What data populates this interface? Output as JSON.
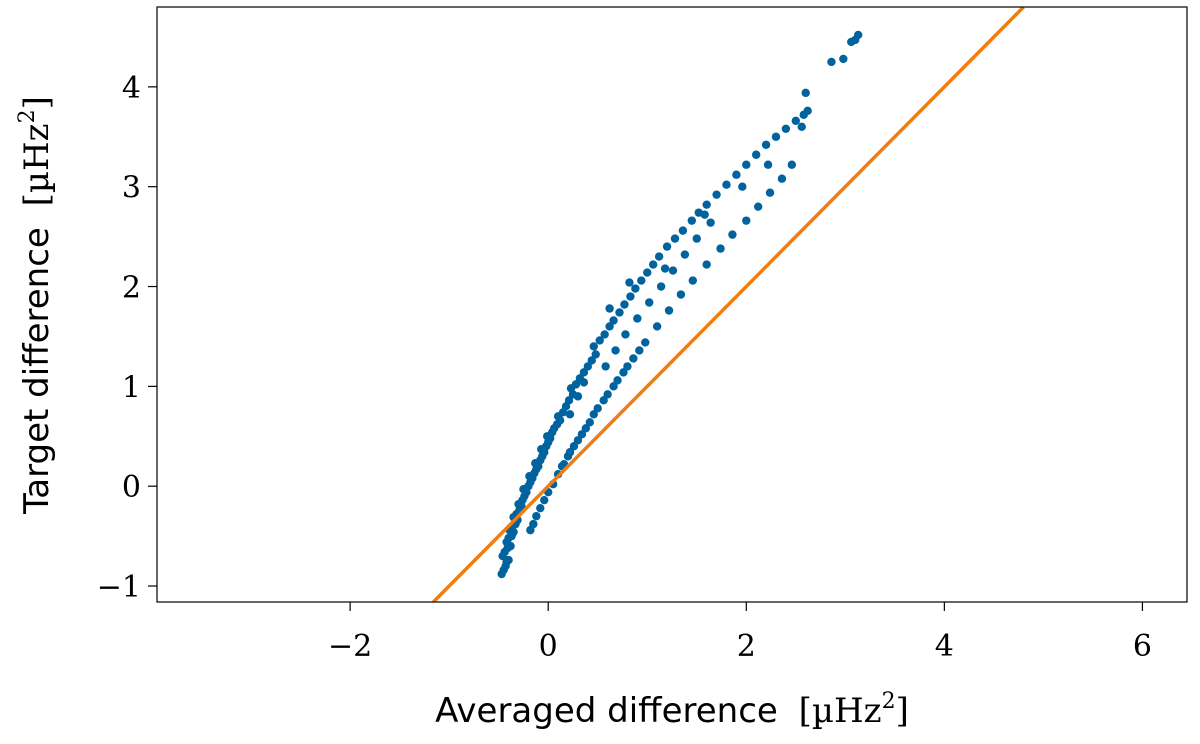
{
  "chart_data": {
    "type": "scatter",
    "title": "",
    "xlabel": "Averaged difference",
    "ylabel": "Target difference",
    "unit": {
      "open": "[",
      "base": "µHz",
      "exp": "2",
      "close": "]"
    },
    "xlim": [
      -3.95,
      6.45
    ],
    "ylim": [
      -1.16,
      4.8
    ],
    "xticks": [
      {
        "value": -2,
        "label": "−2"
      },
      {
        "value": 0,
        "label": "0"
      },
      {
        "value": 2,
        "label": "2"
      },
      {
        "value": 4,
        "label": "4"
      },
      {
        "value": 6,
        "label": "6"
      }
    ],
    "yticks": [
      {
        "value": -1,
        "label": "−1"
      },
      {
        "value": 0,
        "label": "0"
      },
      {
        "value": 1,
        "label": "1"
      },
      {
        "value": 2,
        "label": "2"
      },
      {
        "value": 3,
        "label": "3"
      },
      {
        "value": 4,
        "label": "4"
      }
    ],
    "grid": false,
    "legend": "none",
    "series": [
      {
        "kind": "scatter",
        "color": "#00639e",
        "points": [
          [
            -0.47,
            -0.88
          ],
          [
            -0.45,
            -0.84
          ],
          [
            -0.43,
            -0.8
          ],
          [
            -0.42,
            -0.76
          ],
          [
            -0.4,
            -0.74
          ],
          [
            -0.46,
            -0.7
          ],
          [
            -0.44,
            -0.66
          ],
          [
            -0.41,
            -0.62
          ],
          [
            -0.38,
            -0.6
          ],
          [
            -0.42,
            -0.56
          ],
          [
            -0.4,
            -0.52
          ],
          [
            -0.37,
            -0.5
          ],
          [
            -0.35,
            -0.46
          ],
          [
            -0.39,
            -0.44
          ],
          [
            -0.36,
            -0.4
          ],
          [
            -0.33,
            -0.38
          ],
          [
            -0.31,
            -0.34
          ],
          [
            -0.35,
            -0.31
          ],
          [
            -0.32,
            -0.28
          ],
          [
            -0.29,
            -0.24
          ],
          [
            -0.27,
            -0.2
          ],
          [
            -0.3,
            -0.18
          ],
          [
            -0.26,
            -0.14
          ],
          [
            -0.24,
            -0.1
          ],
          [
            -0.22,
            -0.06
          ],
          [
            -0.25,
            -0.03
          ],
          [
            -0.2,
            0.0
          ],
          [
            -0.18,
            0.04
          ],
          [
            -0.16,
            0.08
          ],
          [
            -0.19,
            0.1
          ],
          [
            -0.14,
            0.13
          ],
          [
            -0.12,
            0.17
          ],
          [
            -0.1,
            0.2
          ],
          [
            -0.13,
            0.23
          ],
          [
            -0.08,
            0.26
          ],
          [
            -0.06,
            0.3
          ],
          [
            -0.04,
            0.34
          ],
          [
            -0.07,
            0.37
          ],
          [
            -0.02,
            0.4
          ],
          [
            0.0,
            0.44
          ],
          [
            0.02,
            0.48
          ],
          [
            -0.01,
            0.5
          ],
          [
            0.04,
            0.54
          ],
          [
            0.06,
            0.58
          ],
          [
            0.09,
            0.62
          ],
          [
            0.12,
            0.66
          ],
          [
            0.1,
            0.7
          ],
          [
            0.15,
            0.74
          ],
          [
            0.18,
            0.8
          ],
          [
            0.21,
            0.86
          ],
          [
            0.25,
            0.92
          ],
          [
            0.23,
            0.98
          ],
          [
            0.28,
            1.02
          ],
          [
            0.32,
            1.08
          ],
          [
            0.36,
            1.14
          ],
          [
            0.4,
            1.2
          ],
          [
            0.44,
            1.26
          ],
          [
            0.48,
            1.32
          ],
          [
            0.46,
            1.4
          ],
          [
            0.52,
            1.46
          ],
          [
            0.57,
            1.52
          ],
          [
            0.62,
            1.6
          ],
          [
            0.66,
            1.66
          ],
          [
            0.72,
            1.74
          ],
          [
            0.77,
            1.82
          ],
          [
            0.83,
            1.9
          ],
          [
            0.88,
            1.98
          ],
          [
            0.94,
            2.06
          ],
          [
            1.0,
            2.14
          ],
          [
            1.06,
            2.22
          ],
          [
            1.12,
            2.3
          ],
          [
            1.2,
            2.4
          ],
          [
            1.28,
            2.48
          ],
          [
            1.36,
            2.56
          ],
          [
            1.45,
            2.66
          ],
          [
            1.52,
            2.74
          ],
          [
            1.6,
            2.82
          ],
          [
            1.7,
            2.92
          ],
          [
            1.8,
            3.02
          ],
          [
            1.9,
            3.12
          ],
          [
            2.0,
            3.22
          ],
          [
            2.1,
            3.32
          ],
          [
            2.2,
            3.42
          ],
          [
            2.3,
            3.5
          ],
          [
            2.4,
            3.58
          ],
          [
            2.5,
            3.66
          ],
          [
            2.58,
            3.72
          ],
          [
            2.62,
            3.76
          ],
          [
            2.6,
            3.94
          ],
          [
            2.86,
            4.25
          ],
          [
            2.98,
            4.28
          ],
          [
            3.06,
            4.45
          ],
          [
            3.1,
            4.47
          ],
          [
            3.13,
            4.52
          ],
          [
            -0.18,
            -0.44
          ],
          [
            -0.15,
            -0.38
          ],
          [
            -0.12,
            -0.3
          ],
          [
            -0.08,
            -0.22
          ],
          [
            -0.04,
            -0.14
          ],
          [
            0.0,
            -0.06
          ],
          [
            0.05,
            0.02
          ],
          [
            0.1,
            0.12
          ],
          [
            0.16,
            0.22
          ],
          [
            0.22,
            0.34
          ],
          [
            0.3,
            0.46
          ],
          [
            0.38,
            0.58
          ],
          [
            0.46,
            0.72
          ],
          [
            0.56,
            0.86
          ],
          [
            0.66,
            1.0
          ],
          [
            0.76,
            1.14
          ],
          [
            0.86,
            1.28
          ],
          [
            0.98,
            1.44
          ],
          [
            1.1,
            1.6
          ],
          [
            1.22,
            1.76
          ],
          [
            1.34,
            1.92
          ],
          [
            1.46,
            2.06
          ],
          [
            1.6,
            2.22
          ],
          [
            1.74,
            2.38
          ],
          [
            1.86,
            2.52
          ],
          [
            2.0,
            2.66
          ],
          [
            2.12,
            2.8
          ],
          [
            2.24,
            2.94
          ],
          [
            2.36,
            3.08
          ],
          [
            2.46,
            3.22
          ],
          [
            0.14,
            0.2
          ],
          [
            0.2,
            0.3
          ],
          [
            0.26,
            0.4
          ],
          [
            0.34,
            0.52
          ],
          [
            0.42,
            0.64
          ],
          [
            0.5,
            0.78
          ],
          [
            0.6,
            0.92
          ],
          [
            0.7,
            1.06
          ],
          [
            0.8,
            1.2
          ],
          [
            0.92,
            1.36
          ],
          [
            0.58,
            1.2
          ],
          [
            0.68,
            1.36
          ],
          [
            0.78,
            1.52
          ],
          [
            0.9,
            1.68
          ],
          [
            1.02,
            1.84
          ],
          [
            1.14,
            2.0
          ],
          [
            1.26,
            2.16
          ],
          [
            1.38,
            2.32
          ],
          [
            1.5,
            2.48
          ],
          [
            1.64,
            2.64
          ],
          [
            0.22,
            0.72
          ],
          [
            0.3,
            0.9
          ],
          [
            0.36,
            1.04
          ],
          [
            0.62,
            1.78
          ],
          [
            0.82,
            2.04
          ],
          [
            1.18,
            2.18
          ],
          [
            1.58,
            2.72
          ],
          [
            1.96,
            3.0
          ],
          [
            2.22,
            3.22
          ],
          [
            2.56,
            3.6
          ]
        ]
      },
      {
        "kind": "line",
        "name": "",
        "color": "#f07d11",
        "x": [
          -1.16,
          4.8
        ],
        "y": [
          -1.16,
          4.8
        ]
      }
    ]
  }
}
